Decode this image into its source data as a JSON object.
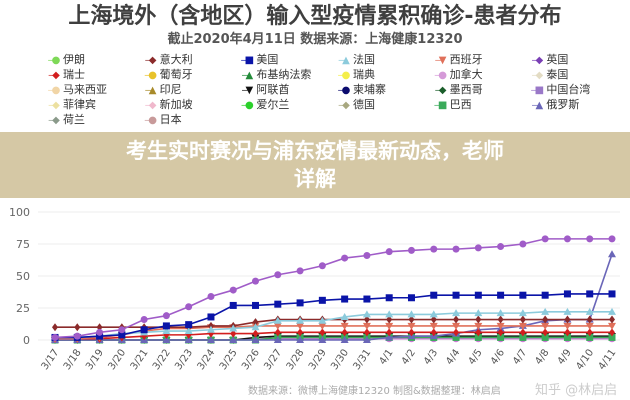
{
  "chart_data": {
    "type": "line",
    "title": "上海境外（含地区）输入型疫情累积确诊-患者分布",
    "subtitle": "截止2020年4月11日 数据来源：上海健康12320",
    "x": [
      "3/17",
      "3/18",
      "3/19",
      "3/20",
      "3/21",
      "3/22",
      "3/23",
      "3/24",
      "3/25",
      "3/26",
      "3/27",
      "3/28",
      "3/29",
      "3/30",
      "3/31",
      "4/1",
      "4/2",
      "4/3",
      "4/4",
      "4/5",
      "4/6",
      "4/7",
      "4/8",
      "4/9",
      "4/10",
      "4/11"
    ],
    "yticks": [
      0,
      25,
      50,
      75,
      100
    ],
    "ylim": [
      0,
      100
    ],
    "grid": true,
    "legend_position": "top",
    "legend": [
      {
        "name": "伊朗",
        "color": "#7ed957",
        "marker": "●"
      },
      {
        "name": "意大利",
        "color": "#8b2b2b",
        "marker": "◆"
      },
      {
        "name": "美国",
        "color": "#0a14a8",
        "marker": "■"
      },
      {
        "name": "法国",
        "color": "#8ccbdc",
        "marker": "▲"
      },
      {
        "name": "西班牙",
        "color": "#e0705a",
        "marker": "▼"
      },
      {
        "name": "英国",
        "color": "#7a3fb5",
        "marker": "◆"
      },
      {
        "name": "瑞士",
        "color": "#d21e1e",
        "marker": "◆"
      },
      {
        "name": "葡萄牙",
        "color": "#e8c22a",
        "marker": "●"
      },
      {
        "name": "布基纳法索",
        "color": "#238b3a",
        "marker": "▲"
      },
      {
        "name": "瑞典",
        "color": "#f4ee4a",
        "marker": "●"
      },
      {
        "name": "加拿大",
        "color": "#d59ad8",
        "marker": "●"
      },
      {
        "name": "泰国",
        "color": "#e3dcc4",
        "marker": "◆"
      },
      {
        "name": "马来西亚",
        "color": "#f1d5a6",
        "marker": "●"
      },
      {
        "name": "印尼",
        "color": "#a88a2a",
        "marker": "▲"
      },
      {
        "name": "阿联酋",
        "color": "#111111",
        "marker": "▼"
      },
      {
        "name": "柬埔寨",
        "color": "#0b0b6e",
        "marker": "●"
      },
      {
        "name": "墨西哥",
        "color": "#1b5e2b",
        "marker": "◆"
      },
      {
        "name": "中国台湾",
        "color": "#9a78c8",
        "marker": "■"
      },
      {
        "name": "菲律宾",
        "color": "#ece0a0",
        "marker": "◆"
      },
      {
        "name": "新加坡",
        "color": "#f0b8cc",
        "marker": "◆"
      },
      {
        "name": "爱尔兰",
        "color": "#2bd02b",
        "marker": "●"
      },
      {
        "name": "德国",
        "color": "#a8a880",
        "marker": "◆"
      },
      {
        "name": "巴西",
        "color": "#3aaa5a",
        "marker": "■"
      },
      {
        "name": "俄罗斯",
        "color": "#6a66b8",
        "marker": "▲"
      },
      {
        "name": "荷兰",
        "color": "#8a9a8a",
        "marker": "◆"
      },
      {
        "name": "日本",
        "color": "#c89a9a",
        "marker": "●"
      }
    ],
    "series": [
      {
        "name": "英国",
        "color": "#a05cc8",
        "marker": "circle",
        "values": [
          2,
          3,
          6,
          8,
          16,
          19,
          26,
          34,
          39,
          46,
          51,
          54,
          58,
          64,
          66,
          69,
          70,
          71,
          71,
          72,
          73,
          75,
          79,
          79,
          79,
          79
        ]
      },
      {
        "name": "美国",
        "color": "#0a14a8",
        "marker": "square",
        "values": [
          2,
          2,
          3,
          4,
          8,
          11,
          12,
          18,
          27,
          27,
          28,
          29,
          31,
          32,
          32,
          33,
          33,
          35,
          35,
          35,
          35,
          35,
          35,
          36,
          36,
          36
        ]
      },
      {
        "name": "法国",
        "color": "#8ccbdc",
        "marker": "triangle",
        "values": [
          2,
          2,
          3,
          5,
          6,
          7,
          7,
          8,
          9,
          10,
          15,
          15,
          15,
          18,
          20,
          20,
          20,
          20,
          21,
          21,
          21,
          21,
          22,
          22,
          22,
          22
        ]
      },
      {
        "name": "意大利",
        "color": "#8b2b2b",
        "marker": "diamond",
        "values": [
          10,
          10,
          10,
          10,
          10,
          10,
          10,
          11,
          11,
          14,
          16,
          16,
          16,
          16,
          16,
          16,
          16,
          16,
          16,
          16,
          16,
          16,
          16,
          16,
          16,
          16
        ]
      },
      {
        "name": "西班牙",
        "color": "#e0705a",
        "marker": "tri-down",
        "values": [
          1,
          1,
          2,
          4,
          7,
          9,
          9,
          10,
          10,
          11,
          11,
          11,
          11,
          11,
          11,
          11,
          11,
          11,
          11,
          11,
          11,
          11,
          11,
          11,
          11,
          11
        ]
      },
      {
        "name": "瑞士",
        "color": "#d21e1e",
        "marker": "diamond",
        "values": [
          1,
          1,
          1,
          2,
          3,
          4,
          4,
          5,
          5,
          5,
          6,
          6,
          6,
          6,
          6,
          6,
          6,
          6,
          6,
          6,
          6,
          6,
          6,
          6,
          6,
          6
        ]
      },
      {
        "name": "俄罗斯",
        "color": "#6a66b8",
        "marker": "triangle",
        "values": [
          0,
          0,
          0,
          0,
          0,
          0,
          0,
          0,
          0,
          0,
          0,
          0,
          0,
          0,
          0,
          2,
          3,
          3,
          5,
          8,
          9,
          11,
          15,
          16,
          16,
          67
        ]
      },
      {
        "name": "巴西",
        "color": "#3aaa5a",
        "marker": "square",
        "values": [
          0,
          0,
          0,
          0,
          0,
          0,
          0,
          0,
          0,
          0,
          2,
          2,
          2,
          2,
          2,
          2,
          2,
          2,
          2,
          2,
          2,
          2,
          2,
          2,
          2,
          2
        ]
      },
      {
        "name": "阿联酋",
        "color": "#111111",
        "marker": "tri-down",
        "values": [
          0,
          0,
          0,
          0,
          0,
          0,
          0,
          0,
          0,
          2,
          3,
          3,
          3,
          3,
          3,
          3,
          3,
          3,
          3,
          3,
          3,
          3,
          3,
          3,
          3,
          3
        ]
      },
      {
        "name": "加拿大",
        "color": "#d07ad8",
        "marker": "circle",
        "values": [
          0,
          0,
          0,
          0,
          0,
          0,
          0,
          0,
          0,
          1,
          1,
          1,
          1,
          1,
          1,
          1,
          1,
          1,
          1,
          1,
          1,
          1,
          1,
          1,
          1,
          1
        ]
      }
    ]
  },
  "banner": {
    "line1": "考生实时赛况与浦东疫情最新动态，老师",
    "line2": "详解"
  },
  "source": "数据来源：微博上海健康12320 制图&数据整理：林启启",
  "watermark": "知乎 @林启启"
}
